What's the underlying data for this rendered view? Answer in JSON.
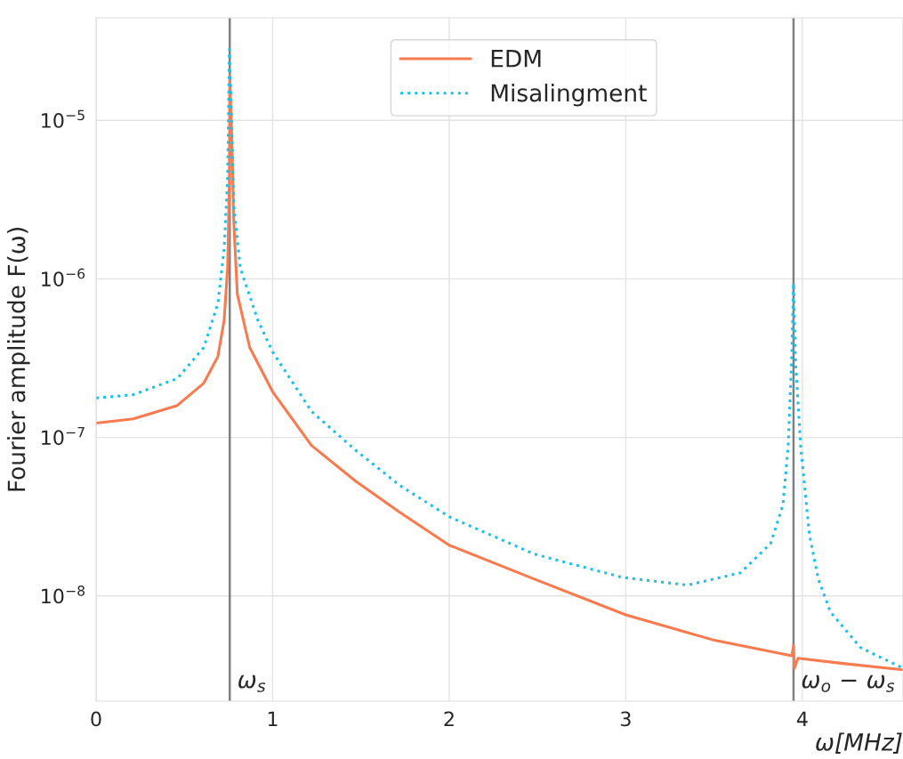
{
  "chart_data": {
    "type": "line",
    "xlabel": "ω[MHz]",
    "ylabel": "Fourier amplitude F(ω)",
    "log": "y",
    "grid": true,
    "legend": "top",
    "xlim": [
      0,
      4.57
    ],
    "xticks": [
      0,
      1,
      2,
      3,
      4
    ],
    "ylim": [
      2.17e-09,
      4.43e-05
    ],
    "yticks": [
      {
        "value": 1e-08,
        "label": "10$^{−8}$"
      },
      {
        "value": 1e-07,
        "label": "10$^{−7}$"
      },
      {
        "value": 1e-06,
        "label": "10$^{−6}$"
      },
      {
        "value": 1e-05,
        "label": "10$^{−5}$"
      }
    ],
    "series": [
      {
        "name": "EDM",
        "color": "#f87a4f",
        "line_style": "solid",
        "x": [
          0,
          0.21,
          0.46,
          0.61,
          0.69,
          0.725,
          0.745,
          0.755,
          0.757,
          0.768,
          0.78,
          0.8,
          0.87,
          1.0,
          1.22,
          1.47,
          1.72,
          2.0,
          2.48,
          3.0,
          3.49,
          3.94,
          3.95,
          3.955,
          3.975,
          4.24,
          4.57
        ],
        "values": [
          1.23e-07,
          1.31e-07,
          1.59e-07,
          2.2e-07,
          3.24e-07,
          5.45e-07,
          1.18e-06,
          4.32e-06,
          1.91e-05,
          8.2e-06,
          2.26e-06,
          8e-07,
          3.69e-07,
          1.94e-07,
          8.9e-08,
          5.3e-08,
          3.37e-08,
          2.09e-08,
          1.28e-08,
          7.6e-09,
          5.3e-09,
          4.2e-09,
          4.85e-09,
          3.5e-09,
          4.05e-09,
          3.74e-09,
          3.42e-09
        ]
      },
      {
        "name": "Misalingment",
        "color": "#1fbfe8",
        "line_style": "dotted",
        "x": [
          0,
          0.21,
          0.46,
          0.61,
          0.69,
          0.725,
          0.745,
          0.755,
          0.766,
          0.78,
          0.816,
          0.917,
          1.0,
          1.22,
          1.47,
          1.72,
          2.0,
          2.48,
          2.98,
          3.35,
          3.65,
          3.82,
          3.89,
          3.92,
          3.94,
          3.95,
          3.96,
          3.99,
          4.04,
          4.09,
          4.16,
          4.33,
          4.57
        ],
        "values": [
          1.77e-07,
          1.86e-07,
          2.35e-07,
          3.69e-07,
          7e-07,
          1.53e-06,
          4.32e-06,
          2.81e-05,
          1.21e-05,
          2.92e-06,
          1.18e-06,
          5.45e-07,
          3.46e-07,
          1.46e-07,
          8.3e-08,
          4.98e-08,
          3.16e-08,
          1.84e-08,
          1.31e-08,
          1.17e-08,
          1.4e-08,
          2.14e-08,
          3.74e-08,
          8.9e-08,
          3.24e-07,
          9.4e-07,
          3.24e-07,
          8.9e-08,
          2.44e-08,
          1.28e-08,
          7.9e-09,
          4.72e-09,
          3.51e-09
        ]
      }
    ],
    "ref_lines": [
      {
        "axis": "x",
        "value": 0.757,
        "label": "ω$_{s}$",
        "color": "#808080"
      },
      {
        "axis": "x",
        "value": 3.95,
        "label": "ω$_{o}$ − ω$_{s}$",
        "color": "#808080"
      }
    ]
  }
}
